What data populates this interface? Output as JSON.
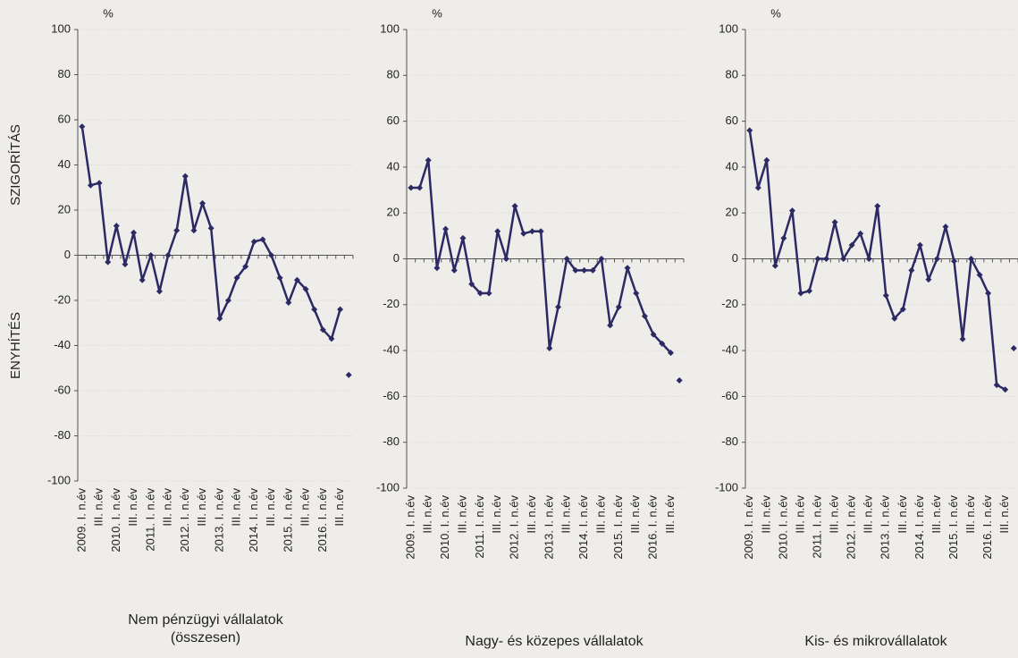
{
  "charts": [
    {
      "chart_data": {
        "type": "line",
        "title": "Nem pénzügyi vállalatok (összesen)",
        "ylabel": "%",
        "annotations": [
          "SZIGORÍTÁS",
          "ENYHÍTÉS"
        ],
        "categories": [
          "2009. I. n.év",
          null,
          "III. n.év",
          null,
          "2010. I. n.év",
          null,
          "III. n.év",
          null,
          "2011. I. n.év",
          null,
          "III. n.év",
          null,
          "2012. I. n.év",
          null,
          "III. n.év",
          null,
          "2013. I. n.év",
          null,
          "III. n.év",
          null,
          "2014. I. n.év",
          null,
          "III. n.év",
          null,
          "2015. I. n.év",
          null,
          "III. n.év",
          null,
          "2016. I. n.év",
          null,
          "III. n.év",
          null
        ],
        "series": [
          {
            "color": "#2b2a64",
            "values": [
              57,
              31,
              32,
              -3,
              13,
              -4,
              10,
              -11,
              0,
              -16,
              0,
              11,
              35,
              11,
              23,
              12,
              -28,
              -20,
              -10,
              -5,
              6,
              7,
              0,
              -10,
              -21,
              -11,
              -15,
              -24,
              -33,
              -37,
              -24,
              null
            ]
          },
          {
            "color": "#2b2a64",
            "markers_only": true,
            "values": [
              null,
              null,
              null,
              null,
              null,
              null,
              null,
              null,
              null,
              null,
              null,
              null,
              null,
              null,
              null,
              null,
              null,
              null,
              null,
              null,
              null,
              null,
              null,
              null,
              null,
              null,
              null,
              null,
              null,
              null,
              null,
              -53
            ]
          }
        ],
        "ylim": [
          -100,
          100
        ],
        "yticks": [
          -100,
          -80,
          -60,
          -40,
          -20,
          0,
          20,
          40,
          60,
          80,
          100
        ],
        "grid": true
      }
    },
    {
      "chart_data": {
        "type": "line",
        "title": "Nagy- és közepes vállalatok",
        "ylabel": "%",
        "categories": [
          "2009. I. n.év",
          null,
          "III. n.év",
          null,
          "2010. I. n.év",
          null,
          "III. n.év",
          null,
          "2011. I. n.év",
          null,
          "III. n.év",
          null,
          "2012. I. n.év",
          null,
          "III. n.év",
          null,
          "2013. I. n.év",
          null,
          "III. n.év",
          null,
          "2014. I. n.év",
          null,
          "III. n.év",
          null,
          "2015. I. n.év",
          null,
          "III. n.év",
          null,
          "2016. I. n.év",
          null,
          "III. n.év",
          null
        ],
        "series": [
          {
            "color": "#2b2a64",
            "values": [
              31,
              31,
              43,
              -4,
              13,
              -5,
              9,
              -11,
              -15,
              -15,
              12,
              0,
              23,
              11,
              12,
              12,
              -39,
              -21,
              0,
              -5,
              -5,
              -5,
              0,
              -29,
              -21,
              -4,
              -15,
              -25,
              -33,
              -37,
              -41,
              null
            ]
          },
          {
            "color": "#2b2a64",
            "markers_only": true,
            "values": [
              null,
              null,
              null,
              null,
              null,
              null,
              null,
              null,
              null,
              null,
              null,
              null,
              null,
              null,
              null,
              null,
              null,
              null,
              null,
              null,
              null,
              null,
              null,
              null,
              null,
              null,
              null,
              null,
              null,
              null,
              null,
              -53
            ]
          }
        ],
        "ylim": [
          -100,
          100
        ],
        "yticks": [
          -100,
          -80,
          -60,
          -40,
          -20,
          0,
          20,
          40,
          60,
          80,
          100
        ],
        "grid": true
      }
    },
    {
      "chart_data": {
        "type": "line",
        "title": "Kis- és mikrovállalatok",
        "ylabel": "%",
        "categories": [
          "2009. I. n.év",
          null,
          "III. n.év",
          null,
          "2010. I. n.év",
          null,
          "III. n.év",
          null,
          "2011. I. n.év",
          null,
          "III. n.év",
          null,
          "2012. I. n.év",
          null,
          "III. n.év",
          null,
          "2013. I. n.év",
          null,
          "III. n.év",
          null,
          "2014. I. n.év",
          null,
          "III. n.év",
          null,
          "2015. I. n.év",
          null,
          "III. n.év",
          null,
          "2016. I. n.év",
          null,
          "III. n.év",
          null
        ],
        "series": [
          {
            "color": "#2b2a64",
            "values": [
              56,
              31,
              43,
              -3,
              9,
              21,
              -15,
              -14,
              0,
              0,
              16,
              0,
              6,
              11,
              0,
              23,
              -16,
              -26,
              -22,
              -5,
              6,
              -9,
              0,
              14,
              -1,
              -35,
              0,
              -7,
              -15,
              -55,
              -57,
              null
            ]
          },
          {
            "color": "#2b2a64",
            "markers_only": true,
            "values": [
              null,
              null,
              null,
              null,
              null,
              null,
              null,
              null,
              null,
              null,
              null,
              null,
              null,
              null,
              null,
              null,
              null,
              null,
              null,
              null,
              null,
              null,
              null,
              null,
              null,
              null,
              null,
              null,
              null,
              null,
              null,
              -39
            ]
          }
        ],
        "ylim": [
          -100,
          100
        ],
        "yticks": [
          -100,
          -80,
          -60,
          -40,
          -20,
          0,
          20,
          40,
          60,
          80,
          100
        ],
        "grid": true
      }
    }
  ]
}
